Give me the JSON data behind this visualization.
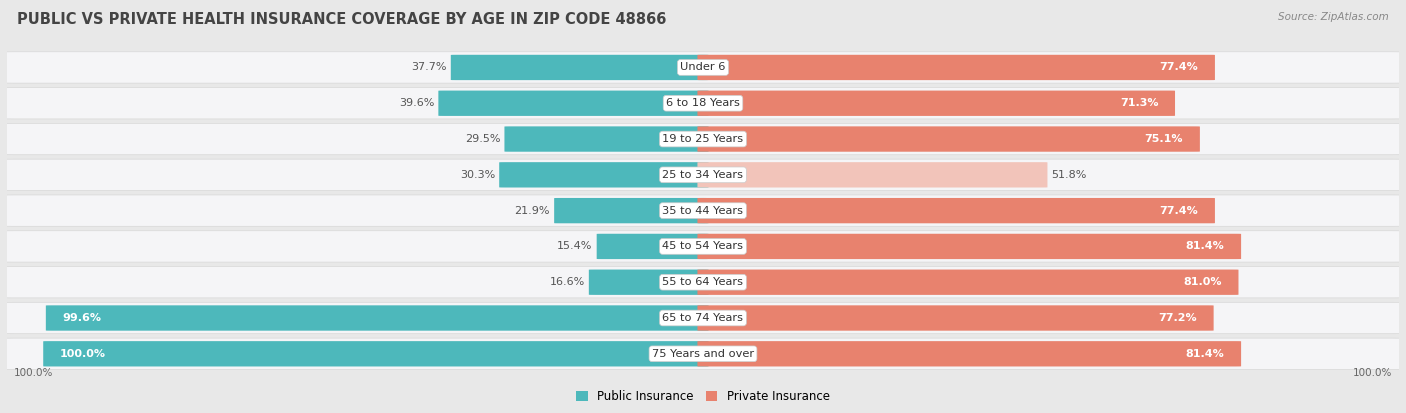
{
  "title": "PUBLIC VS PRIVATE HEALTH INSURANCE COVERAGE BY AGE IN ZIP CODE 48866",
  "source": "Source: ZipAtlas.com",
  "categories": [
    "Under 6",
    "6 to 18 Years",
    "19 to 25 Years",
    "25 to 34 Years",
    "35 to 44 Years",
    "45 to 54 Years",
    "55 to 64 Years",
    "65 to 74 Years",
    "75 Years and over"
  ],
  "public_values": [
    37.7,
    39.6,
    29.5,
    30.3,
    21.9,
    15.4,
    16.6,
    99.6,
    100.0
  ],
  "private_values": [
    77.4,
    71.3,
    75.1,
    51.8,
    77.4,
    81.4,
    81.0,
    77.2,
    81.4
  ],
  "public_color": "#4db8bb",
  "private_color": "#e8826e",
  "private_color_light": "#f2c4ba",
  "bg_color": "#e8e8e8",
  "row_bg_color": "#f5f5f7",
  "row_border_color": "#d8d8d8",
  "title_color": "#444444",
  "source_color": "#888888",
  "value_color_dark": "#555555",
  "value_color_white": "#ffffff",
  "title_fontsize": 10.5,
  "label_fontsize": 8.2,
  "value_fontsize": 8.0,
  "legend_fontsize": 8.5,
  "max_value": 100.0,
  "light_private_threshold": 55.0
}
